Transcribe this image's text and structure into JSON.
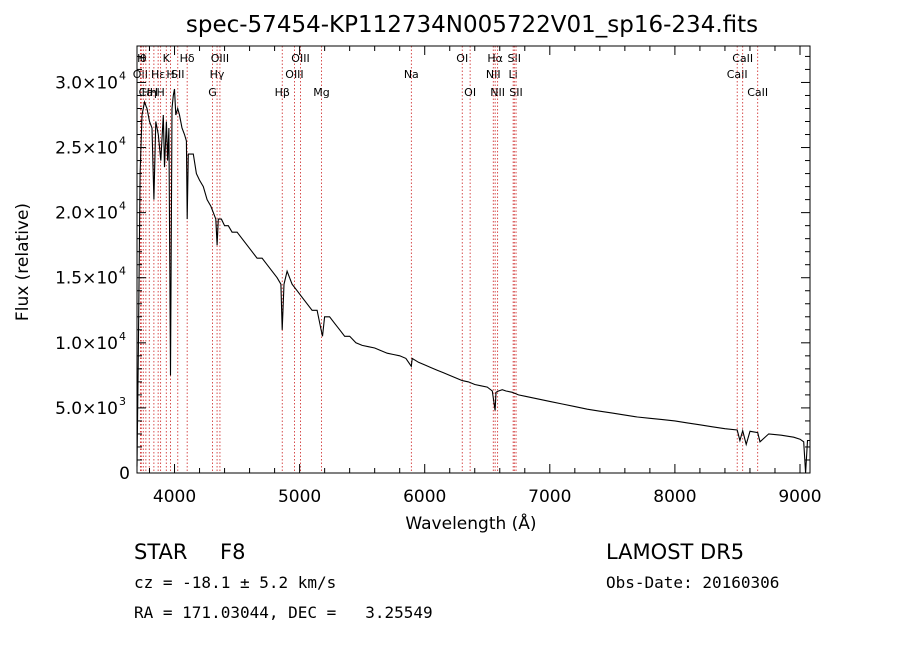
{
  "chart_data": {
    "type": "line",
    "title": "spec-57454-KP112734N005722V01_sp16-234.fits",
    "xlabel": "Wavelength (Å)",
    "ylabel": "Flux (relative)",
    "xlim": [
      3700,
      9080
    ],
    "ylim": [
      0,
      32800
    ],
    "x_ticks": [
      {
        "v": 4000,
        "label": "4000"
      },
      {
        "v": 5000,
        "label": "5000"
      },
      {
        "v": 6000,
        "label": "6000"
      },
      {
        "v": 7000,
        "label": "7000"
      },
      {
        "v": 8000,
        "label": "8000"
      },
      {
        "v": 9000,
        "label": "9000"
      }
    ],
    "y_ticks": [
      {
        "v": 0,
        "label": "0",
        "sup": ""
      },
      {
        "v": 5000,
        "label": "5.0×10",
        "sup": "3"
      },
      {
        "v": 10000,
        "label": "1.0×10",
        "sup": "4"
      },
      {
        "v": 15000,
        "label": "1.5×10",
        "sup": "4"
      },
      {
        "v": 20000,
        "label": "2.0×10",
        "sup": "4"
      },
      {
        "v": 25000,
        "label": "2.5×10",
        "sup": "4"
      },
      {
        "v": 30000,
        "label": "3.0×10",
        "sup": "4"
      }
    ],
    "grid": false,
    "series": [
      {
        "x": [
          3700,
          3710,
          3725,
          3740,
          3760,
          3780,
          3800,
          3820,
          3835,
          3850,
          3870,
          3890,
          3910,
          3920,
          3935,
          3945,
          3955,
          3968,
          3980,
          3990,
          4000,
          4010,
          4025,
          4040,
          4060,
          4080,
          4095,
          4101,
          4110,
          4130,
          4150,
          4175,
          4200,
          4230,
          4260,
          4290,
          4310,
          4330,
          4340,
          4350,
          4375,
          4400,
          4430,
          4460,
          4500,
          4540,
          4580,
          4620,
          4660,
          4700,
          4740,
          4780,
          4820,
          4850,
          4861,
          4875,
          4900,
          4940,
          4980,
          5020,
          5060,
          5100,
          5140,
          5172,
          5183,
          5200,
          5240,
          5280,
          5320,
          5360,
          5400,
          5450,
          5500,
          5550,
          5600,
          5650,
          5700,
          5750,
          5800,
          5850,
          5893,
          5900,
          5950,
          6000,
          6050,
          6100,
          6150,
          6200,
          6250,
          6300,
          6350,
          6400,
          6450,
          6500,
          6540,
          6563,
          6570,
          6590,
          6620,
          6650,
          6700,
          6750,
          6800,
          6900,
          7000,
          7100,
          7200,
          7300,
          7400,
          7500,
          7600,
          7700,
          7800,
          7900,
          8000,
          8100,
          8200,
          8300,
          8400,
          8498,
          8520,
          8542,
          8570,
          8600,
          8662,
          8680,
          8750,
          8850,
          8950,
          9000,
          9030,
          9045,
          9060,
          9080
        ],
        "y": [
          500,
          9000,
          23000,
          27500,
          28500,
          28000,
          27000,
          26500,
          21000,
          27000,
          26000,
          24000,
          27500,
          23500,
          27000,
          24000,
          26500,
          7500,
          28000,
          29000,
          29500,
          27500,
          28000,
          27500,
          26500,
          26000,
          25500,
          19500,
          24500,
          24500,
          24500,
          23000,
          22500,
          22000,
          21000,
          20500,
          20000,
          19500,
          17500,
          19500,
          19500,
          19000,
          19000,
          18500,
          18500,
          18000,
          17500,
          17000,
          16500,
          16500,
          16000,
          15500,
          15000,
          14500,
          11000,
          14500,
          15500,
          14500,
          14000,
          13500,
          13000,
          12500,
          12500,
          11000,
          10500,
          12000,
          12000,
          11500,
          11000,
          10500,
          10500,
          10000,
          9800,
          9700,
          9600,
          9400,
          9200,
          9100,
          9000,
          8800,
          8200,
          8800,
          8500,
          8300,
          8100,
          7900,
          7700,
          7500,
          7300,
          7100,
          7000,
          6800,
          6700,
          6600,
          6300,
          4800,
          6200,
          6300,
          6400,
          6300,
          6200,
          6000,
          5900,
          5700,
          5500,
          5300,
          5100,
          4900,
          4750,
          4600,
          4450,
          4300,
          4200,
          4100,
          4000,
          3850,
          3700,
          3550,
          3400,
          3300,
          2500,
          3250,
          2200,
          3200,
          3100,
          2400,
          3000,
          2900,
          2750,
          2600,
          2400,
          0,
          2500,
          2500
        ]
      }
    ],
    "line_markers": [
      {
        "x": 3727,
        "label": "OII",
        "row": 1
      },
      {
        "x": 3734,
        "label": "H",
        "row": 0
      },
      {
        "x": 3750,
        "label": "θ",
        "row": 0
      },
      {
        "x": 3771,
        "label": "Ca",
        "row": 2
      },
      {
        "x": 3798,
        "label": "Hη",
        "row": 2
      },
      {
        "x": 3835,
        "label": "H",
        "row": 2
      },
      {
        "x": 3869,
        "label": "Hε",
        "row": 1
      },
      {
        "x": 3889,
        "label": "H",
        "row": 2
      },
      {
        "x": 3934,
        "label": "K",
        "row": 0
      },
      {
        "x": 3968,
        "label": "H",
        "row": 1
      },
      {
        "x": 4026,
        "label": "SII",
        "row": 1
      },
      {
        "x": 4101,
        "label": "Hδ",
        "row": 0
      },
      {
        "x": 4304,
        "label": "G",
        "row": 2
      },
      {
        "x": 4340,
        "label": "Hγ",
        "row": 1
      },
      {
        "x": 4363,
        "label": "OIII",
        "row": 0
      },
      {
        "x": 4861,
        "label": "Hβ",
        "row": 2
      },
      {
        "x": 4959,
        "label": "OIII",
        "row": 1
      },
      {
        "x": 5007,
        "label": "OIII",
        "row": 0
      },
      {
        "x": 5175,
        "label": "Mg",
        "row": 2
      },
      {
        "x": 5893,
        "label": "Na",
        "row": 1
      },
      {
        "x": 6300,
        "label": "OI",
        "row": 0
      },
      {
        "x": 6363,
        "label": "OI",
        "row": 2
      },
      {
        "x": 6548,
        "label": "NII",
        "row": 1
      },
      {
        "x": 6563,
        "label": "Hα",
        "row": 0
      },
      {
        "x": 6583,
        "label": "NII",
        "row": 2
      },
      {
        "x": 6707,
        "label": "Li",
        "row": 1
      },
      {
        "x": 6716,
        "label": "SII",
        "row": 0
      },
      {
        "x": 6730,
        "label": "SII",
        "row": 2
      },
      {
        "x": 8498,
        "label": "CaII",
        "row": 1
      },
      {
        "x": 8542,
        "label": "CaII",
        "row": 0
      },
      {
        "x": 8662,
        "label": "CaII",
        "row": 2
      }
    ]
  },
  "info": {
    "object_class": "STAR",
    "subclass": "F8",
    "survey": "LAMOST DR5",
    "velocity": "cz = -18.1 ± 5.2 km/s",
    "obs_date": "Obs-Date: 20160306",
    "coords": "RA = 171.03044, DEC =   3.25549"
  }
}
